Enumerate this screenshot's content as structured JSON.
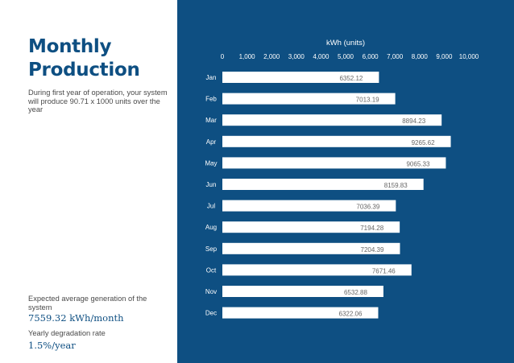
{
  "header": {
    "title": "Monthly Production",
    "subtitle": "During first year of operation, your system will produce 90.71 x 1000 units over the year"
  },
  "stats": {
    "avg_label": "Expected average generation of the system",
    "avg_value": "7559.32 kWh/month",
    "degradation_label": "Yearly degradation rate",
    "degradation_value": "1.5%/year"
  },
  "colors": {
    "panel": "#0e4f82",
    "bar": "#ffffff",
    "accent": "#0e4f82"
  },
  "chart_data": {
    "type": "bar",
    "orientation": "horizontal",
    "title": "kWh (units)",
    "xlabel": "kWh (units)",
    "ylabel": "",
    "xlim": [
      0,
      10000
    ],
    "ticks": [
      0,
      1000,
      2000,
      3000,
      4000,
      5000,
      6000,
      7000,
      8000,
      9000,
      10000
    ],
    "tick_labels": [
      "0",
      "1,000",
      "2,000",
      "3,000",
      "4,000",
      "5,000",
      "6,000",
      "7,000",
      "8,000",
      "9,000",
      "10,000"
    ],
    "categories": [
      "Jan",
      "Feb",
      "Mar",
      "Apr",
      "May",
      "Jun",
      "Jul",
      "Aug",
      "Sep",
      "Oct",
      "Nov",
      "Dec"
    ],
    "values": [
      6352.12,
      7013.19,
      8894.23,
      9265.62,
      9065.33,
      8159.83,
      7036.39,
      7194.28,
      7204.39,
      7671.46,
      6532.88,
      6322.06
    ],
    "value_labels": [
      "6352.12",
      "7013.19",
      "8894.23",
      "9265.62",
      "9065.33",
      "8159.83",
      "7036.39",
      "7194.28",
      "7204.39",
      "7671.46",
      "6532.88",
      "6322.06"
    ]
  }
}
